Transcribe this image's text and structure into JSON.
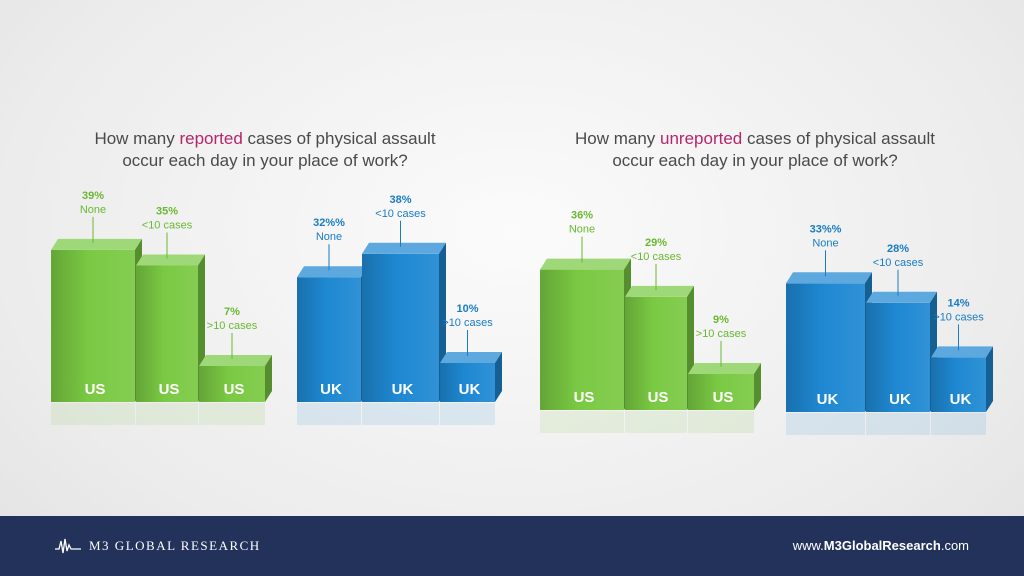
{
  "titles": {
    "left": {
      "pre": "How many ",
      "highlight": "reported",
      "post": " cases of physical assault",
      "line2": "occur each day in your place of work?"
    },
    "right": {
      "pre": "How many ",
      "highlight": "unreported",
      "post": " cases of physical assault",
      "line2": "occur each day in your place of work?"
    }
  },
  "colors": {
    "us": "#7ac943",
    "uk": "#1e88d2",
    "us_label": "#6ab832",
    "uk_label": "#1a7cc4",
    "highlight": "#b4266b",
    "footer": "#22325a"
  },
  "chart_data": [
    {
      "type": "bar",
      "title": "How many reported cases of physical assault occur each day in your place of work?",
      "categories": [
        "None",
        "<10 cases",
        ">10 cases"
      ],
      "series": [
        {
          "name": "US",
          "values": [
            39,
            35,
            7
          ],
          "value_labels": [
            "39%",
            "35%",
            "7%"
          ]
        },
        {
          "name": "UK",
          "values": [
            32,
            38,
            10
          ],
          "value_labels": [
            "32%%",
            "38%",
            "10%"
          ]
        }
      ],
      "unit": "%"
    },
    {
      "type": "bar",
      "title": "How many unreported cases of physical assault occur each day in your place of work?",
      "categories": [
        "None",
        "<10 cases",
        ">10 cases"
      ],
      "series": [
        {
          "name": "US",
          "values": [
            36,
            29,
            9
          ],
          "value_labels": [
            "36%",
            "29%",
            "9%"
          ]
        },
        {
          "name": "UK",
          "values": [
            33,
            28,
            14
          ],
          "value_labels": [
            "33%%",
            "28%",
            "14%"
          ]
        }
      ],
      "unit": "%"
    }
  ],
  "footer": {
    "brand": "M3 GLOBAL RESEARCH",
    "site_prefix": "www.",
    "site_bold": "M3GlobalResearch",
    "site_suffix": ".com"
  }
}
